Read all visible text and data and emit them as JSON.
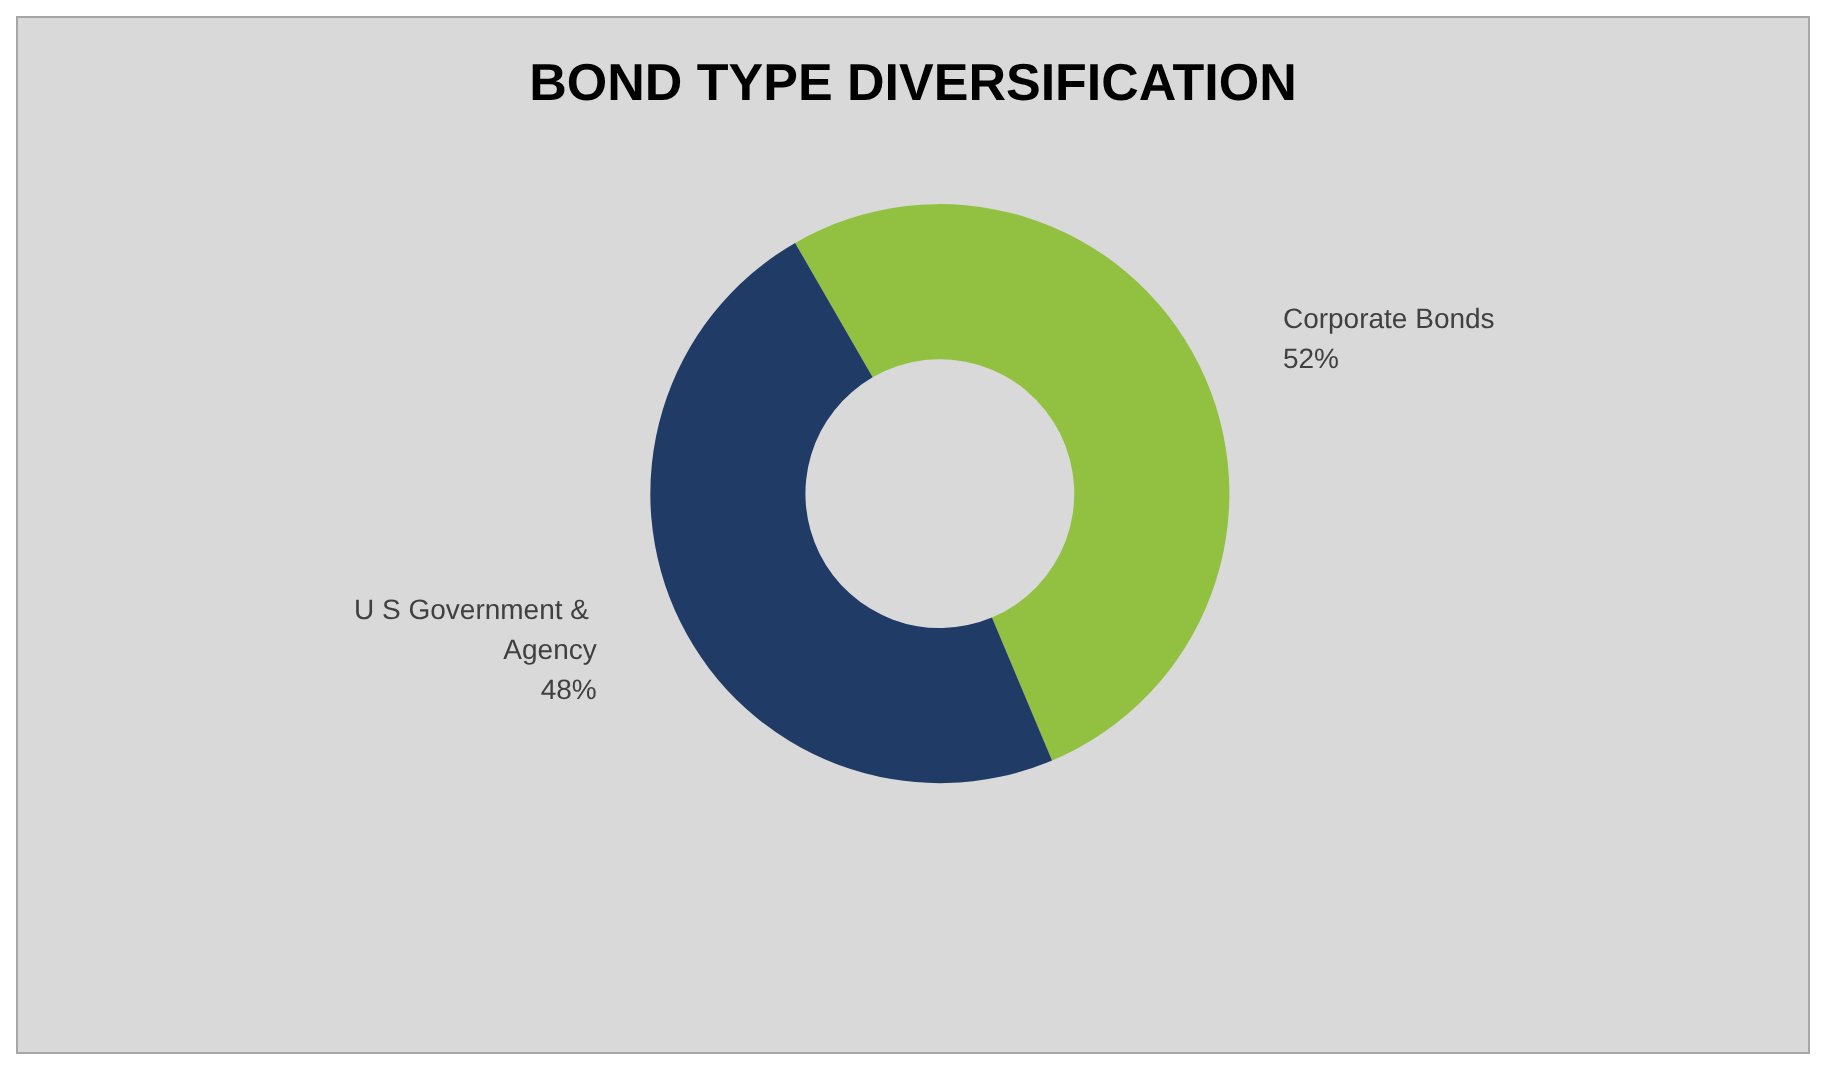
{
  "chart_data": {
    "type": "donut",
    "title": "BOND TYPE DIVERSIFICATION",
    "categories": [
      "Corporate Bonds",
      "U S Government & Agency"
    ],
    "values": [
      52,
      48
    ],
    "value_labels": [
      "52%",
      "48%"
    ],
    "colors": [
      "#92c040",
      "#1f3b66"
    ],
    "legend": false
  }
}
